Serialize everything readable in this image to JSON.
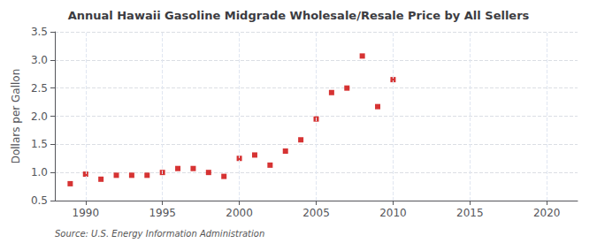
{
  "chart_data": {
    "type": "scatter",
    "title": "Annual Hawaii Gasoline Midgrade Wholesale/Resale Price by All Sellers",
    "ylabel": "Dollars per Gallon",
    "annotation": "Source: U.S. Energy Information Administration",
    "x": [
      1989,
      1990,
      1991,
      1992,
      1993,
      1994,
      1995,
      1996,
      1997,
      1998,
      1999,
      2000,
      2001,
      2002,
      2003,
      2004,
      2005,
      2006,
      2007,
      2008,
      2009,
      2010
    ],
    "values": [
      0.8,
      0.97,
      0.88,
      0.95,
      0.95,
      0.95,
      1.0,
      1.07,
      1.07,
      1.0,
      0.93,
      1.25,
      1.31,
      1.13,
      1.38,
      1.58,
      1.95,
      2.42,
      2.5,
      3.07,
      2.17,
      2.65
    ],
    "color": "#cc0000",
    "marker": "square",
    "xlim": [
      1988,
      2022
    ],
    "ylim": [
      0.5,
      3.5
    ],
    "xticks": [
      1990,
      1995,
      2000,
      2005,
      2010,
      2015,
      2020
    ],
    "yticks": [
      0.5,
      {
        "value": 1.0,
        "label": "1.0"
      },
      1.5,
      {
        "value": 2.0,
        "label": "2.0"
      },
      2.5,
      {
        "value": 3.0,
        "label": "3.0"
      },
      3.5
    ],
    "grid": true
  }
}
